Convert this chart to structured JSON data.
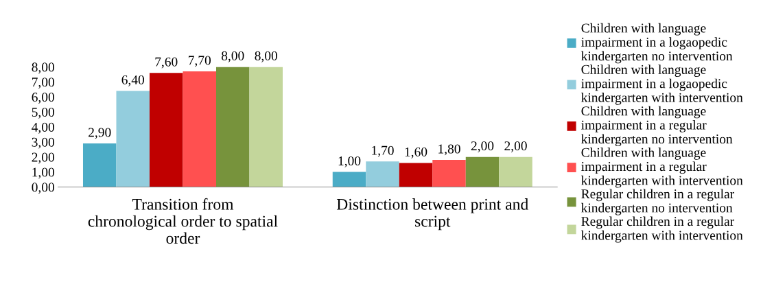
{
  "chart_data": {
    "type": "bar",
    "categories": [
      "Transition from\nchronological order to spatial\norder",
      "Distinction between print and\nscript"
    ],
    "series": [
      {
        "name": "Children with language\nimpairment in a logaopedic\nkindergarten no intervention",
        "color": "#4bacc6",
        "values": [
          2.9,
          1.0
        ],
        "value_labels": [
          "2,90",
          "1,00"
        ]
      },
      {
        "name": "Children with language\nimpairment in a logaopedic\nkindergarten with intervention",
        "color": "#93cddd",
        "values": [
          6.4,
          1.7
        ],
        "value_labels": [
          "6,40",
          "1,70"
        ]
      },
      {
        "name": "Children with language\nimpairment in a regular\nkindergarten no intervention",
        "color": "#c00000",
        "values": [
          7.6,
          1.6
        ],
        "value_labels": [
          "7,60",
          "1,60"
        ]
      },
      {
        "name": "Children with language\nimpairment in a regular\nkindergarten with intervention",
        "color": "#ff5050",
        "values": [
          7.7,
          1.8
        ],
        "value_labels": [
          "7,70",
          "1,80"
        ]
      },
      {
        "name": "Regular children in a regular\nkindergarten no intervention",
        "color": "#77933c",
        "values": [
          8.0,
          2.0
        ],
        "value_labels": [
          "8,00",
          "2,00"
        ]
      },
      {
        "name": "Regular children in a regular\nkindergarten with intervention",
        "color": "#c3d69b",
        "values": [
          8.0,
          2.0
        ],
        "value_labels": [
          "8,00",
          "2,00"
        ]
      }
    ],
    "ylim": [
      0,
      8
    ],
    "yticks": [
      {
        "value": 0,
        "label": "0,00"
      },
      {
        "value": 1,
        "label": "1,00"
      },
      {
        "value": 2,
        "label": "2,00"
      },
      {
        "value": 3,
        "label": "3,00"
      },
      {
        "value": 4,
        "label": "4,00"
      },
      {
        "value": 5,
        "label": "5,00"
      },
      {
        "value": 6,
        "label": "6,00"
      },
      {
        "value": 7,
        "label": "7,00"
      },
      {
        "value": 8,
        "label": "8,00"
      }
    ],
    "grid": false,
    "legend": "right"
  }
}
